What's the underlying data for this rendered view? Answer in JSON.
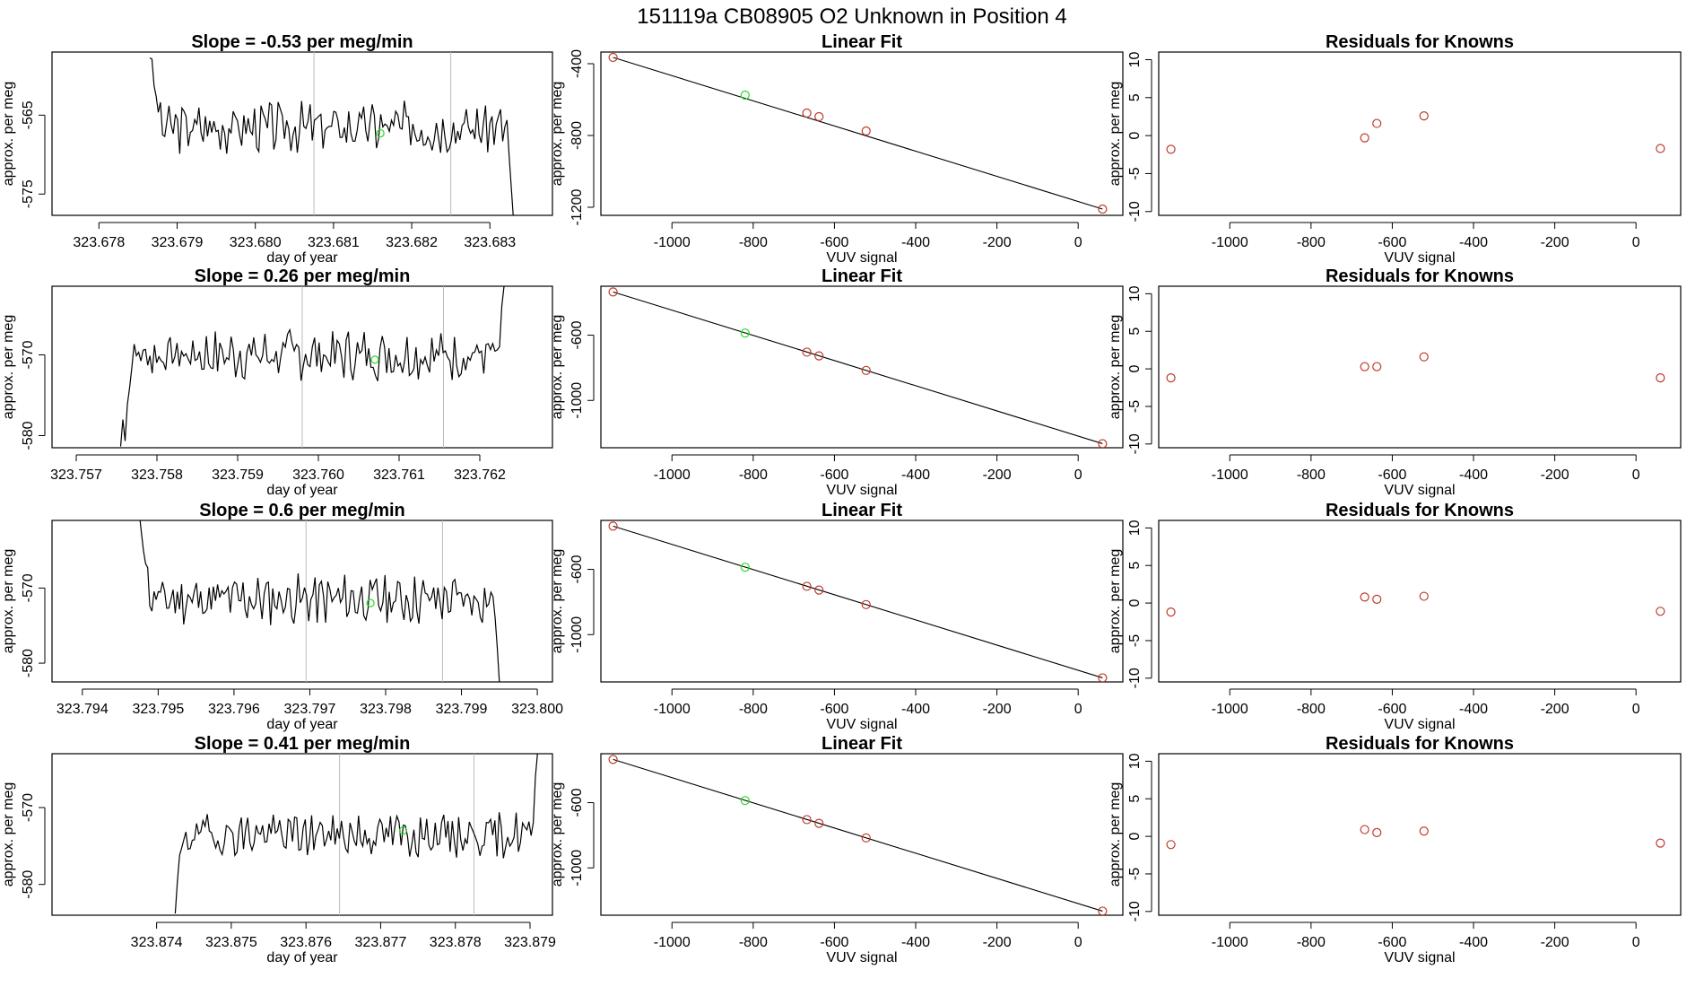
{
  "figure": {
    "title": "151119a      CB08905    O2 Unknown in Position  4"
  },
  "colors": {
    "trace": "#000000",
    "known_point": "#c0392b",
    "unknown_point": "#22dd22",
    "vline": "#bbbbbb",
    "fit_line": "#000000"
  },
  "chart_data": [
    {
      "panel": "row1-time",
      "type": "line",
      "title": "Slope =  -0.53  per meg/min",
      "xlabel": "day of year",
      "ylabel": "approx. per meg",
      "xlim": [
        323.6774,
        323.6838
      ],
      "ylim": [
        -577.7,
        -557
      ],
      "xticks": [
        323.678,
        323.679,
        323.68,
        323.681,
        323.682,
        323.683
      ],
      "xtick_labels": [
        "323.678",
        "323.679",
        "323.680",
        "323.681",
        "323.682",
        "323.683"
      ],
      "yticks": [
        -565,
        -575
      ],
      "ytick_labels": [
        "-565",
        "-575"
      ],
      "vlines": [
        323.68075,
        323.6825
      ],
      "trace_start": 323.67865,
      "trace_end": 323.6833,
      "trace_center": -566.5,
      "trace_amp": 2.6,
      "trace_head": [
        -557,
        -559,
        -561,
        -563,
        -564
      ],
      "trace_tail": [
        -570,
        -574,
        -578
      ],
      "seed": 3,
      "unknown_point": {
        "x": 323.6816,
        "y": -567.3
      }
    },
    {
      "panel": "row1-fit",
      "type": "scatter",
      "title": "Linear Fit",
      "xlabel": "VUV signal",
      "ylabel": "approx. per meg",
      "xlim": [
        -1175,
        110
      ],
      "ylim": [
        -1245,
        -335
      ],
      "xticks": [
        -1000,
        -800,
        -600,
        -400,
        -200,
        0
      ],
      "xtick_labels": [
        "-1000",
        "-800",
        "-600",
        "-400",
        "-200",
        "0"
      ],
      "yticks": [
        -400,
        -800,
        -1200
      ],
      "ytick_labels": [
        "-400",
        "-800",
        "-1200"
      ],
      "fit_line": [
        [
          -1145,
          -365
        ],
        [
          60,
          -1210
        ]
      ],
      "knowns": [
        [
          -1145,
          -365
        ],
        [
          -668,
          -675
        ],
        [
          -638,
          -695
        ],
        [
          -522,
          -775
        ],
        [
          60,
          -1210
        ]
      ],
      "unknown": [
        [
          -820,
          -575
        ]
      ]
    },
    {
      "panel": "row1-resid",
      "type": "scatter",
      "title": "Residuals for Knowns",
      "xlabel": "VUV signal",
      "ylabel": "approx. per meg",
      "xlim": [
        -1175,
        110
      ],
      "ylim": [
        -10.5,
        11
      ],
      "xticks": [
        -1000,
        -800,
        -600,
        -400,
        -200,
        0
      ],
      "xtick_labels": [
        "-1000",
        "-800",
        "-600",
        "-400",
        "-200",
        "0"
      ],
      "yticks": [
        10,
        5,
        0,
        -5,
        -10
      ],
      "ytick_labels": [
        "10",
        "5",
        "0",
        "-5",
        "-10"
      ],
      "knowns": [
        [
          -1145,
          -1.8
        ],
        [
          -668,
          -0.3
        ],
        [
          -638,
          1.6
        ],
        [
          -522,
          2.6
        ],
        [
          60,
          -1.7
        ]
      ]
    },
    {
      "panel": "row2-time",
      "type": "line",
      "title": "Slope =  0.26  per meg/min",
      "xlabel": "day of year",
      "ylabel": "approx. per meg",
      "xlim": [
        323.7567,
        323.7629
      ],
      "ylim": [
        -581.5,
        -561.5
      ],
      "xticks": [
        323.757,
        323.758,
        323.759,
        323.76,
        323.761,
        323.762
      ],
      "xtick_labels": [
        "323.757",
        "323.758",
        "323.759",
        "323.760",
        "323.761",
        "323.762"
      ],
      "yticks": [
        -570,
        -580
      ],
      "ytick_labels": [
        "-570",
        "-580"
      ],
      "vlines": [
        323.7598,
        323.76155
      ],
      "trace_start": 323.75755,
      "trace_end": 323.7623,
      "trace_center": -570,
      "trace_amp": 2.6,
      "trace_head": [
        -581.5,
        -577,
        -580,
        -576,
        -574
      ],
      "trace_tail": [
        -569,
        -564,
        -561.5
      ],
      "seed": 7,
      "unknown_point": {
        "x": 323.7607,
        "y": -570.6
      }
    },
    {
      "panel": "row2-fit",
      "type": "scatter",
      "title": "Linear Fit",
      "xlabel": "VUV signal",
      "ylabel": "approx. per meg",
      "xlim": [
        -1175,
        110
      ],
      "ylim": [
        -1290,
        -300
      ],
      "xticks": [
        -1000,
        -800,
        -600,
        -400,
        -200,
        0
      ],
      "xtick_labels": [
        "-1000",
        "-800",
        "-600",
        "-400",
        "-200",
        "0"
      ],
      "yticks": [
        -600,
        -1000
      ],
      "ytick_labels": [
        "-600",
        "-1000"
      ],
      "fit_line": [
        [
          -1145,
          -335
        ],
        [
          60,
          -1265
        ]
      ],
      "knowns": [
        [
          -1145,
          -335
        ],
        [
          -668,
          -704
        ],
        [
          -638,
          -727
        ],
        [
          -522,
          -816
        ],
        [
          60,
          -1265
        ]
      ],
      "unknown": [
        [
          -820,
          -587
        ]
      ]
    },
    {
      "panel": "row2-resid",
      "type": "scatter",
      "title": "Residuals for Knowns",
      "xlabel": "VUV signal",
      "ylabel": "approx. per meg",
      "xlim": [
        -1175,
        110
      ],
      "ylim": [
        -10.5,
        11
      ],
      "xticks": [
        -1000,
        -800,
        -600,
        -400,
        -200,
        0
      ],
      "xtick_labels": [
        "-1000",
        "-800",
        "-600",
        "-400",
        "-200",
        "0"
      ],
      "yticks": [
        10,
        5,
        0,
        -5,
        -10
      ],
      "ytick_labels": [
        "10",
        "5",
        "0",
        "-5",
        "-10"
      ],
      "knowns": [
        [
          -1145,
          -1.2
        ],
        [
          -668,
          0.3
        ],
        [
          -638,
          0.3
        ],
        [
          -522,
          1.6
        ],
        [
          60,
          -1.2
        ]
      ]
    },
    {
      "panel": "row3-time",
      "type": "line",
      "title": "Slope =  0.6  per meg/min",
      "xlabel": "day of year",
      "ylabel": "approx. per meg",
      "xlim": [
        323.7936,
        323.8002
      ],
      "ylim": [
        -582.5,
        -561
      ],
      "xticks": [
        323.794,
        323.795,
        323.796,
        323.797,
        323.798,
        323.799,
        323.8
      ],
      "xtick_labels": [
        "323.794",
        "323.795",
        "323.796",
        "323.797",
        "323.798",
        "323.799",
        "323.800"
      ],
      "yticks": [
        -570,
        -580
      ],
      "ytick_labels": [
        "-570",
        "-580"
      ],
      "vlines": [
        323.79695,
        323.79875
      ],
      "trace_start": 323.79475,
      "trace_end": 323.7995,
      "trace_center": -571.5,
      "trace_amp": 2.7,
      "trace_head": [
        -561,
        -562,
        -564,
        -566,
        -568
      ],
      "trace_tail": [
        -574,
        -578,
        -582.5
      ],
      "seed": 11,
      "unknown_point": {
        "x": 323.7978,
        "y": -572
      }
    },
    {
      "panel": "row3-fit",
      "type": "scatter",
      "title": "Linear Fit",
      "xlabel": "VUV signal",
      "ylabel": "approx. per meg",
      "xlim": [
        -1175,
        110
      ],
      "ylim": [
        -1290,
        -300
      ],
      "xticks": [
        -1000,
        -800,
        -600,
        -400,
        -200,
        0
      ],
      "xtick_labels": [
        "-1000",
        "-800",
        "-600",
        "-400",
        "-200",
        "0"
      ],
      "yticks": [
        -600,
        -1000
      ],
      "ytick_labels": [
        "-600",
        "-1000"
      ],
      "fit_line": [
        [
          -1145,
          -335
        ],
        [
          60,
          -1265
        ]
      ],
      "knowns": [
        [
          -1145,
          -335
        ],
        [
          -668,
          -704
        ],
        [
          -638,
          -727
        ],
        [
          -522,
          -816
        ],
        [
          60,
          -1265
        ]
      ],
      "unknown": [
        [
          -820,
          -587
        ]
      ]
    },
    {
      "panel": "row3-resid",
      "type": "scatter",
      "title": "Residuals for Knowns",
      "xlabel": "VUV signal",
      "ylabel": "approx. per meg",
      "xlim": [
        -1175,
        110
      ],
      "ylim": [
        -10.5,
        11
      ],
      "xticks": [
        -1000,
        -800,
        -600,
        -400,
        -200,
        0
      ],
      "xtick_labels": [
        "-1000",
        "-800",
        "-600",
        "-400",
        "-200",
        "0"
      ],
      "yticks": [
        10,
        5,
        0,
        -5,
        -10
      ],
      "ytick_labels": [
        "10",
        "5",
        "0",
        "-5",
        "-10"
      ],
      "knowns": [
        [
          -1145,
          -1.2
        ],
        [
          -668,
          0.8
        ],
        [
          -638,
          0.5
        ],
        [
          -522,
          0.9
        ],
        [
          60,
          -1.1
        ]
      ]
    },
    {
      "panel": "row4-time",
      "type": "line",
      "title": "Slope =  0.41  per meg/min",
      "xlabel": "day of year",
      "ylabel": "approx. per meg",
      "xlim": [
        323.8726,
        323.8793
      ],
      "ylim": [
        -584,
        -563
      ],
      "xticks": [
        323.874,
        323.875,
        323.876,
        323.877,
        323.878,
        323.879
      ],
      "xtick_labels": [
        "323.874",
        "323.875",
        "323.876",
        "323.877",
        "323.878",
        "323.879"
      ],
      "yticks": [
        -570,
        -580
      ],
      "ytick_labels": [
        "-570",
        "-580"
      ],
      "vlines": [
        323.87645,
        323.87825
      ],
      "trace_start": 323.87425,
      "trace_end": 323.8791,
      "trace_center": -573.5,
      "trace_amp": 2.4,
      "trace_head": [
        -584,
        -580,
        -577,
        -576
      ],
      "trace_tail": [
        -572,
        -566,
        -563
      ],
      "seed": 19,
      "unknown_point": {
        "x": 323.8773,
        "y": -573
      }
    },
    {
      "panel": "row4-fit",
      "type": "scatter",
      "title": "Linear Fit",
      "xlabel": "VUV signal",
      "ylabel": "approx. per meg",
      "xlim": [
        -1175,
        110
      ],
      "ylim": [
        -1290,
        -300
      ],
      "xticks": [
        -1000,
        -800,
        -600,
        -400,
        -200,
        0
      ],
      "xtick_labels": [
        "-1000",
        "-800",
        "-600",
        "-400",
        "-200",
        "0"
      ],
      "yticks": [
        -600,
        -1000
      ],
      "ytick_labels": [
        "-600",
        "-1000"
      ],
      "fit_line": [
        [
          -1145,
          -335
        ],
        [
          60,
          -1265
        ]
      ],
      "knowns": [
        [
          -1145,
          -335
        ],
        [
          -668,
          -704
        ],
        [
          -638,
          -727
        ],
        [
          -522,
          -816
        ],
        [
          60,
          -1265
        ]
      ],
      "unknown": [
        [
          -820,
          -587
        ]
      ]
    },
    {
      "panel": "row4-resid",
      "type": "scatter",
      "title": "Residuals for Knowns",
      "xlabel": "VUV signal",
      "ylabel": "approx. per meg",
      "xlim": [
        -1175,
        110
      ],
      "ylim": [
        -10.5,
        11
      ],
      "xticks": [
        -1000,
        -800,
        -600,
        -400,
        -200,
        0
      ],
      "xtick_labels": [
        "-1000",
        "-800",
        "-600",
        "-400",
        "-200",
        "0"
      ],
      "yticks": [
        10,
        5,
        0,
        -5,
        -10
      ],
      "ytick_labels": [
        "10",
        "5",
        "0",
        "-5",
        "-10"
      ],
      "knowns": [
        [
          -1145,
          -1.1
        ],
        [
          -668,
          0.9
        ],
        [
          -638,
          0.5
        ],
        [
          -522,
          0.7
        ],
        [
          60,
          -0.9
        ]
      ]
    }
  ]
}
